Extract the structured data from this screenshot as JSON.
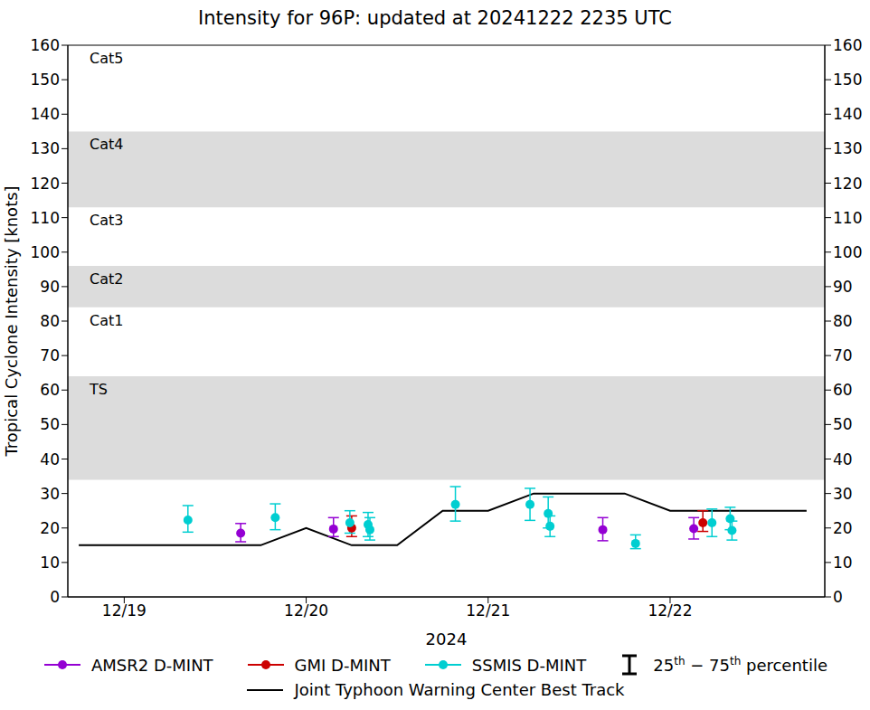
{
  "chart_data": {
    "type": "scatter",
    "title": "Intensity for 96P: updated at 20241222 2235 UTC",
    "x_label": "2024",
    "y_label": "Tropical Cyclone Intensity [knots]",
    "xlim": [
      18.69,
      22.85
    ],
    "xticks": [
      {
        "value": 19,
        "label": "12/19"
      },
      {
        "value": 20,
        "label": "12/20"
      },
      {
        "value": 21,
        "label": "12/21"
      },
      {
        "value": 22,
        "label": "12/22"
      }
    ],
    "ylim": [
      0,
      160
    ],
    "yticks": [
      0,
      10,
      20,
      30,
      40,
      50,
      60,
      70,
      80,
      90,
      100,
      110,
      120,
      130,
      140,
      150,
      160
    ],
    "y2lim": [
      0,
      160
    ],
    "y2ticks": [
      0,
      10,
      20,
      30,
      40,
      50,
      60,
      70,
      80,
      90,
      100,
      110,
      120,
      130,
      140,
      150,
      160
    ],
    "grid": false,
    "legend": "bottom",
    "intensity_bands": [
      {
        "label": "TS",
        "lo": 34,
        "hi": 64,
        "color": "#dcdcdc"
      },
      {
        "label": "Cat1",
        "lo": 64,
        "hi": 84,
        "color": "#ffffff"
      },
      {
        "label": "Cat2",
        "lo": 84,
        "hi": 96,
        "color": "#dcdcdc"
      },
      {
        "label": "Cat3",
        "lo": 96,
        "hi": 113,
        "color": "#ffffff"
      },
      {
        "label": "Cat4",
        "lo": 113,
        "hi": 135,
        "color": "#dcdcdc"
      },
      {
        "label": "Cat5",
        "lo": 135,
        "hi": 160,
        "color": "#ffffff"
      }
    ],
    "error_bar_label": "25th − 75th percentile",
    "series": [
      {
        "name": "AMSR2 D-MINT",
        "type": "scatter",
        "color": "#9400d3",
        "marker": "circle",
        "x": [
          19.64,
          20.15,
          21.63,
          22.13
        ],
        "values": [
          18.5,
          19.7,
          19.5,
          19.8
        ],
        "p25": [
          16,
          17.5,
          16.3,
          16.8
        ],
        "p75": [
          21.3,
          23,
          23,
          23
        ]
      },
      {
        "name": "GMI D-MINT",
        "type": "scatter",
        "color": "#cc0000",
        "marker": "circle",
        "x": [
          20.25,
          22.18
        ],
        "values": [
          20,
          21.5
        ],
        "p25": [
          17.5,
          19
        ],
        "p75": [
          23.5,
          25
        ]
      },
      {
        "name": "SSMIS D-MINT",
        "type": "scatter",
        "color": "#00ced1",
        "marker": "circle",
        "x": [
          19.35,
          19.83,
          20.24,
          20.34,
          20.35,
          20.82,
          21.23,
          21.33,
          21.34,
          21.81,
          22.23,
          22.33,
          22.34
        ],
        "values": [
          22.3,
          23,
          21.5,
          21,
          19.5,
          26.8,
          26.8,
          24.2,
          20.5,
          15.5,
          21.5,
          22.7,
          19.3
        ],
        "p25": [
          18.8,
          19.5,
          18.5,
          17.5,
          16.5,
          22,
          22.2,
          20,
          17.5,
          14,
          17.5,
          19.5,
          16.5
        ],
        "p75": [
          26.5,
          27,
          25,
          24.5,
          23,
          32,
          31.5,
          29,
          23.5,
          18,
          25.5,
          26,
          22
        ]
      },
      {
        "name": "Joint Typhoon Warning Center Best Track",
        "type": "line",
        "color": "#000000",
        "line_style": "solid",
        "x": [
          18.75,
          19,
          19.25,
          19.5,
          19.75,
          20,
          20.25,
          20.5,
          20.75,
          21,
          21.25,
          21.5,
          21.75,
          22,
          22.25,
          22.5,
          22.75
        ],
        "values": [
          15,
          15,
          15,
          15,
          15,
          20,
          15,
          15,
          25,
          25,
          30,
          30,
          30,
          25,
          25,
          25,
          25
        ]
      }
    ]
  }
}
